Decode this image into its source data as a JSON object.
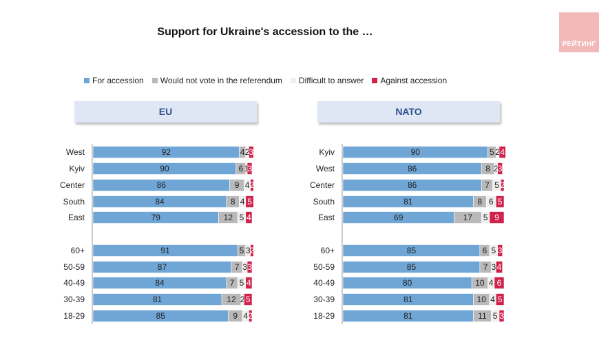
{
  "title": "Support for Ukraine's accession to the …",
  "logo_text": "РЕЙТИНГ",
  "legend": [
    {
      "label": "For accession",
      "color": "#6fa6d6"
    },
    {
      "label": "Would not vote in the referendum",
      "color": "#b9b9b9"
    },
    {
      "label": "Difficult to answer",
      "color": "#efefef"
    },
    {
      "label": "Against accession",
      "color": "#d0224a"
    }
  ],
  "chart_data": [
    {
      "type": "bar",
      "orientation": "horizontal",
      "stacked": true,
      "title": "EU",
      "categories": [
        "West",
        "Kyiv",
        "Center",
        "South",
        "East",
        "60+",
        "50-59",
        "40-49",
        "30-39",
        "18-29"
      ],
      "series": [
        {
          "name": "For accession",
          "values": [
            92,
            90,
            86,
            84,
            79,
            91,
            87,
            84,
            81,
            85
          ]
        },
        {
          "name": "Would not vote in the referendum",
          "values": [
            4,
            6,
            9,
            8,
            12,
            5,
            7,
            7,
            12,
            9
          ]
        },
        {
          "name": "Difficult to answer",
          "values": [
            2,
            1,
            4,
            4,
            5,
            3,
            3,
            5,
            2,
            4
          ]
        },
        {
          "name": "Against accession",
          "values": [
            3,
            3,
            2,
            5,
            4,
            2,
            3,
            4,
            5,
            2
          ]
        }
      ]
    },
    {
      "type": "bar",
      "orientation": "horizontal",
      "stacked": true,
      "title": "NATO",
      "categories": [
        "Kyiv",
        "West",
        "Center",
        "South",
        "East",
        "60+",
        "50-59",
        "40-49",
        "30-39",
        "18-29"
      ],
      "series": [
        {
          "name": "For accession",
          "values": [
            90,
            86,
            86,
            81,
            69,
            85,
            85,
            80,
            81,
            81
          ]
        },
        {
          "name": "Would not vote in the referendum",
          "values": [
            5,
            8,
            7,
            8,
            17,
            6,
            7,
            10,
            10,
            11
          ]
        },
        {
          "name": "Difficult to answer",
          "values": [
            2,
            2,
            5,
            6,
            5,
            5,
            3,
            4,
            4,
            5
          ]
        },
        {
          "name": "Against accession",
          "values": [
            4,
            3,
            2,
            5,
            9,
            3,
            4,
            6,
            5,
            3
          ]
        }
      ]
    }
  ]
}
